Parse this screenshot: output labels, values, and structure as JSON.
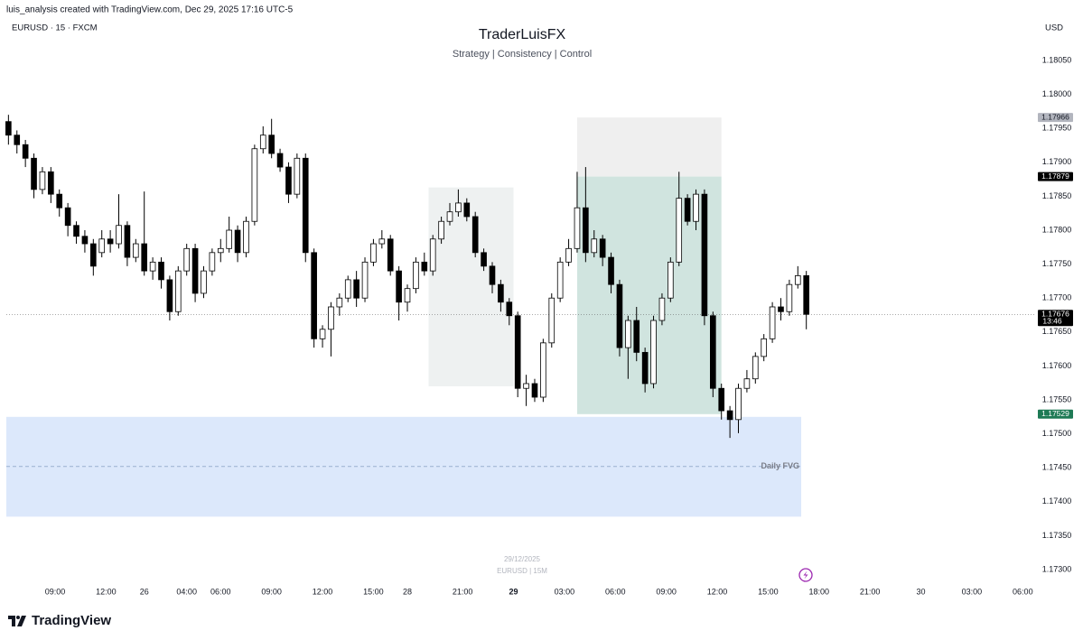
{
  "chart_data": {
    "type": "candlestick",
    "credit": "luis_analysis created with TradingView.com, Dec 29, 2025 17:16 UTC-5",
    "symbol": "EURUSD · 15 · FXCM",
    "currency": "USD",
    "title": "TraderLuisFX",
    "subtitle": "Strategy | Consistency | Control",
    "watermark_date": "29/12/2025",
    "watermark_symbol": "EURUSD | 15M",
    "brand": "TradingView",
    "up_color": "#ffffff",
    "down_color": "#000000",
    "x": [
      0,
      2,
      4,
      6,
      8,
      10,
      12,
      14,
      16,
      18,
      20,
      22,
      24,
      26,
      28,
      30,
      32,
      34,
      36,
      38,
      40,
      42,
      44,
      46,
      48,
      50,
      52,
      54,
      56,
      58,
      60,
      62,
      64,
      66,
      68,
      70,
      72,
      74,
      76,
      78,
      80,
      82,
      84,
      86,
      88,
      90,
      92,
      94,
      96,
      98,
      100,
      102,
      104,
      106,
      108,
      110,
      112,
      114,
      116,
      118,
      120,
      122,
      124,
      126,
      128,
      130,
      132,
      134,
      136,
      138,
      140,
      142,
      144,
      146,
      148,
      150,
      152,
      154,
      156,
      158,
      160,
      162,
      164,
      166,
      168,
      170,
      172,
      174,
      176,
      178,
      180,
      182,
      184,
      186,
      188
    ],
    "open": [
      1.1796,
      1.1794,
      1.17926,
      1.17906,
      1.1786,
      1.17886,
      1.17853,
      1.17833,
      1.17807,
      1.17791,
      1.1778,
      1.17767,
      1.17787,
      1.1778,
      1.17807,
      1.1776,
      1.1778,
      1.1774,
      1.17753,
      1.17727,
      1.1768,
      1.1774,
      1.17773,
      1.17707,
      1.1774,
      1.17767,
      1.17773,
      1.178,
      1.17767,
      1.17813,
      1.1792,
      1.1794,
      1.17913,
      1.17893,
      1.17853,
      1.17906,
      1.17767,
      1.1764,
      1.17654,
      1.17687,
      1.177,
      1.17727,
      1.177,
      1.17753,
      1.1778,
      1.17787,
      1.1774,
      1.17694,
      1.17714,
      1.17753,
      1.1774,
      1.17787,
      1.17813,
      1.17827,
      1.1784,
      1.1782,
      1.17767,
      1.17747,
      1.1772,
      1.17694,
      1.17674,
      1.17567,
      1.17574,
      1.17554,
      1.17634,
      1.177,
      1.17753,
      1.17773,
      1.17833,
      1.17767,
      1.17787,
      1.1776,
      1.1772,
      1.17627,
      1.17667,
      1.1762,
      1.17574,
      1.17667,
      1.177,
      1.17753,
      1.17847,
      1.17813,
      1.17853,
      1.17674,
      1.17567,
      1.17534,
      1.17521,
      1.17567,
      1.17581,
      1.17614,
      1.1764,
      1.17687,
      1.1768,
      1.1772,
      1.17733
    ],
    "high": [
      1.1797,
      1.17947,
      1.17933,
      1.17913,
      1.17893,
      1.17893,
      1.1786,
      1.1784,
      1.17813,
      1.178,
      1.17787,
      1.178,
      1.178,
      1.17853,
      1.17813,
      1.17787,
      1.17857,
      1.1776,
      1.1776,
      1.17733,
      1.17747,
      1.1778,
      1.1778,
      1.17747,
      1.17773,
      1.17787,
      1.1782,
      1.17807,
      1.1782,
      1.17926,
      1.17953,
      1.17964,
      1.1792,
      1.179,
      1.17913,
      1.17913,
      1.17773,
      1.1766,
      1.17694,
      1.17707,
      1.17733,
      1.1774,
      1.1776,
      1.17787,
      1.178,
      1.17793,
      1.17747,
      1.1772,
      1.1776,
      1.17767,
      1.17793,
      1.1782,
      1.1784,
      1.1786,
      1.17847,
      1.17827,
      1.17773,
      1.17753,
      1.17727,
      1.177,
      1.1768,
      1.17587,
      1.17581,
      1.1764,
      1.17707,
      1.1776,
      1.17787,
      1.17886,
      1.17893,
      1.178,
      1.17793,
      1.17767,
      1.17727,
      1.17674,
      1.17687,
      1.17627,
      1.17674,
      1.17707,
      1.1776,
      1.17886,
      1.17853,
      1.1786,
      1.1786,
      1.1768,
      1.17574,
      1.17541,
      1.17574,
      1.17594,
      1.1762,
      1.17647,
      1.17694,
      1.177,
      1.17727,
      1.17747,
      1.1774
    ],
    "low": [
      1.17926,
      1.17913,
      1.17893,
      1.17847,
      1.17853,
      1.1784,
      1.1782,
      1.17791,
      1.1778,
      1.17767,
      1.17733,
      1.1776,
      1.17767,
      1.17773,
      1.17747,
      1.17753,
      1.17733,
      1.17727,
      1.17714,
      1.17667,
      1.17674,
      1.17733,
      1.17694,
      1.177,
      1.17733,
      1.17753,
      1.17767,
      1.17753,
      1.1776,
      1.17807,
      1.17913,
      1.17906,
      1.17886,
      1.1784,
      1.17847,
      1.17753,
      1.17627,
      1.17627,
      1.17614,
      1.17674,
      1.17694,
      1.17687,
      1.17694,
      1.17747,
      1.17773,
      1.17733,
      1.17667,
      1.1768,
      1.17707,
      1.17733,
      1.17733,
      1.1778,
      1.17807,
      1.1782,
      1.17813,
      1.1776,
      1.1774,
      1.17707,
      1.1768,
      1.1766,
      1.17554,
      1.17541,
      1.17547,
      1.17547,
      1.17627,
      1.17694,
      1.17747,
      1.17767,
      1.17753,
      1.1776,
      1.17747,
      1.17707,
      1.17614,
      1.17581,
      1.17607,
      1.17561,
      1.17567,
      1.1766,
      1.17694,
      1.17747,
      1.17807,
      1.178,
      1.1766,
      1.17554,
      1.17521,
      1.17494,
      1.17501,
      1.17561,
      1.17574,
      1.17607,
      1.17634,
      1.17667,
      1.17674,
      1.17714,
      1.17654
    ],
    "close": [
      1.1794,
      1.17926,
      1.17906,
      1.1786,
      1.17886,
      1.17853,
      1.17833,
      1.17807,
      1.17791,
      1.1778,
      1.17747,
      1.17787,
      1.1778,
      1.17807,
      1.1776,
      1.1778,
      1.1774,
      1.17753,
      1.17727,
      1.1768,
      1.1774,
      1.17773,
      1.17707,
      1.1774,
      1.17767,
      1.17773,
      1.178,
      1.17767,
      1.17813,
      1.1792,
      1.1794,
      1.17913,
      1.17893,
      1.17853,
      1.17906,
      1.17767,
      1.1764,
      1.17654,
      1.17687,
      1.177,
      1.17727,
      1.177,
      1.17753,
      1.1778,
      1.17787,
      1.1774,
      1.17694,
      1.17714,
      1.17753,
      1.1774,
      1.17787,
      1.17813,
      1.17827,
      1.1784,
      1.1782,
      1.17767,
      1.17747,
      1.1772,
      1.17694,
      1.17674,
      1.17567,
      1.17574,
      1.17554,
      1.17634,
      1.177,
      1.17753,
      1.17773,
      1.17833,
      1.17767,
      1.17787,
      1.1776,
      1.1772,
      1.17627,
      1.17667,
      1.1762,
      1.17574,
      1.17667,
      1.177,
      1.17753,
      1.17847,
      1.17813,
      1.17853,
      1.17674,
      1.17567,
      1.17534,
      1.17521,
      1.17567,
      1.17581,
      1.17614,
      1.1764,
      1.17687,
      1.1768,
      1.1772,
      1.17733,
      1.17676
    ],
    "xlim": [
      -0.5,
      241.7
    ],
    "ylim": [
      1.172814,
      1.181125
    ],
    "xticks": [
      {
        "value": 11,
        "label": "09:00"
      },
      {
        "value": 23,
        "label": "12:00"
      },
      {
        "value": 32,
        "label": "26"
      },
      {
        "value": 42,
        "label": "04:00"
      },
      {
        "value": 50,
        "label": "06:00"
      },
      {
        "value": 62,
        "label": "09:00"
      },
      {
        "value": 74,
        "label": "12:00"
      },
      {
        "value": 86,
        "label": "15:00"
      },
      {
        "value": 94,
        "label": "28"
      },
      {
        "value": 107,
        "label": "21:00"
      },
      {
        "value": 119,
        "label": "29",
        "bold": true
      },
      {
        "value": 131,
        "label": "03:00"
      },
      {
        "value": 143,
        "label": "06:00"
      },
      {
        "value": 155,
        "label": "09:00"
      },
      {
        "value": 167,
        "label": "12:00"
      },
      {
        "value": 179,
        "label": "15:00"
      },
      {
        "value": 191,
        "label": "18:00"
      },
      {
        "value": 203,
        "label": "21:00"
      },
      {
        "value": 215,
        "label": "30"
      },
      {
        "value": 227,
        "label": "03:00"
      },
      {
        "value": 239,
        "label": "06:00"
      }
    ],
    "yticks": [
      {
        "value": 1.1805,
        "label": "1.18050"
      },
      {
        "value": 1.18,
        "label": "1.18000"
      },
      {
        "value": 1.1795,
        "label": "1.17950"
      },
      {
        "value": 1.179,
        "label": "1.17900"
      },
      {
        "value": 1.1785,
        "label": "1.17850"
      },
      {
        "value": 1.178,
        "label": "1.17800"
      },
      {
        "value": 1.1775,
        "label": "1.17750"
      },
      {
        "value": 1.177,
        "label": "1.17700"
      },
      {
        "value": 1.1765,
        "label": "1.17650"
      },
      {
        "value": 1.176,
        "label": "1.17600"
      },
      {
        "value": 1.1755,
        "label": "1.17550"
      },
      {
        "value": 1.175,
        "label": "1.17500"
      },
      {
        "value": 1.1745,
        "label": "1.17450"
      },
      {
        "value": 1.174,
        "label": "1.17400"
      },
      {
        "value": 1.1735,
        "label": "1.17350"
      },
      {
        "value": 1.173,
        "label": "1.17300"
      }
    ],
    "range_box": {
      "x": [
        99,
        119
      ],
      "low": 1.1757,
      "high": 1.17863,
      "color": "#eef1f1"
    },
    "position": {
      "x": [
        134,
        168
      ],
      "entry": 1.17879,
      "stop": 1.17966,
      "target": 1.17529,
      "stop_color": "#efefef",
      "target_color": "#d0e4df"
    },
    "fvg": {
      "label": "Daily FVG",
      "x": [
        -0.5,
        186.8
      ],
      "low": 1.17378,
      "high": 1.17525,
      "mid": 1.17452,
      "color": "#dce8fb"
    },
    "price_tags": [
      {
        "value": 1.17966,
        "color": "#b2b5be"
      },
      {
        "value": 1.17879,
        "color": "#000000"
      },
      {
        "value": 1.17676,
        "color": "#000000",
        "countdown": "13:46"
      },
      {
        "value": 1.17529,
        "color": "#1e7a55"
      }
    ]
  }
}
